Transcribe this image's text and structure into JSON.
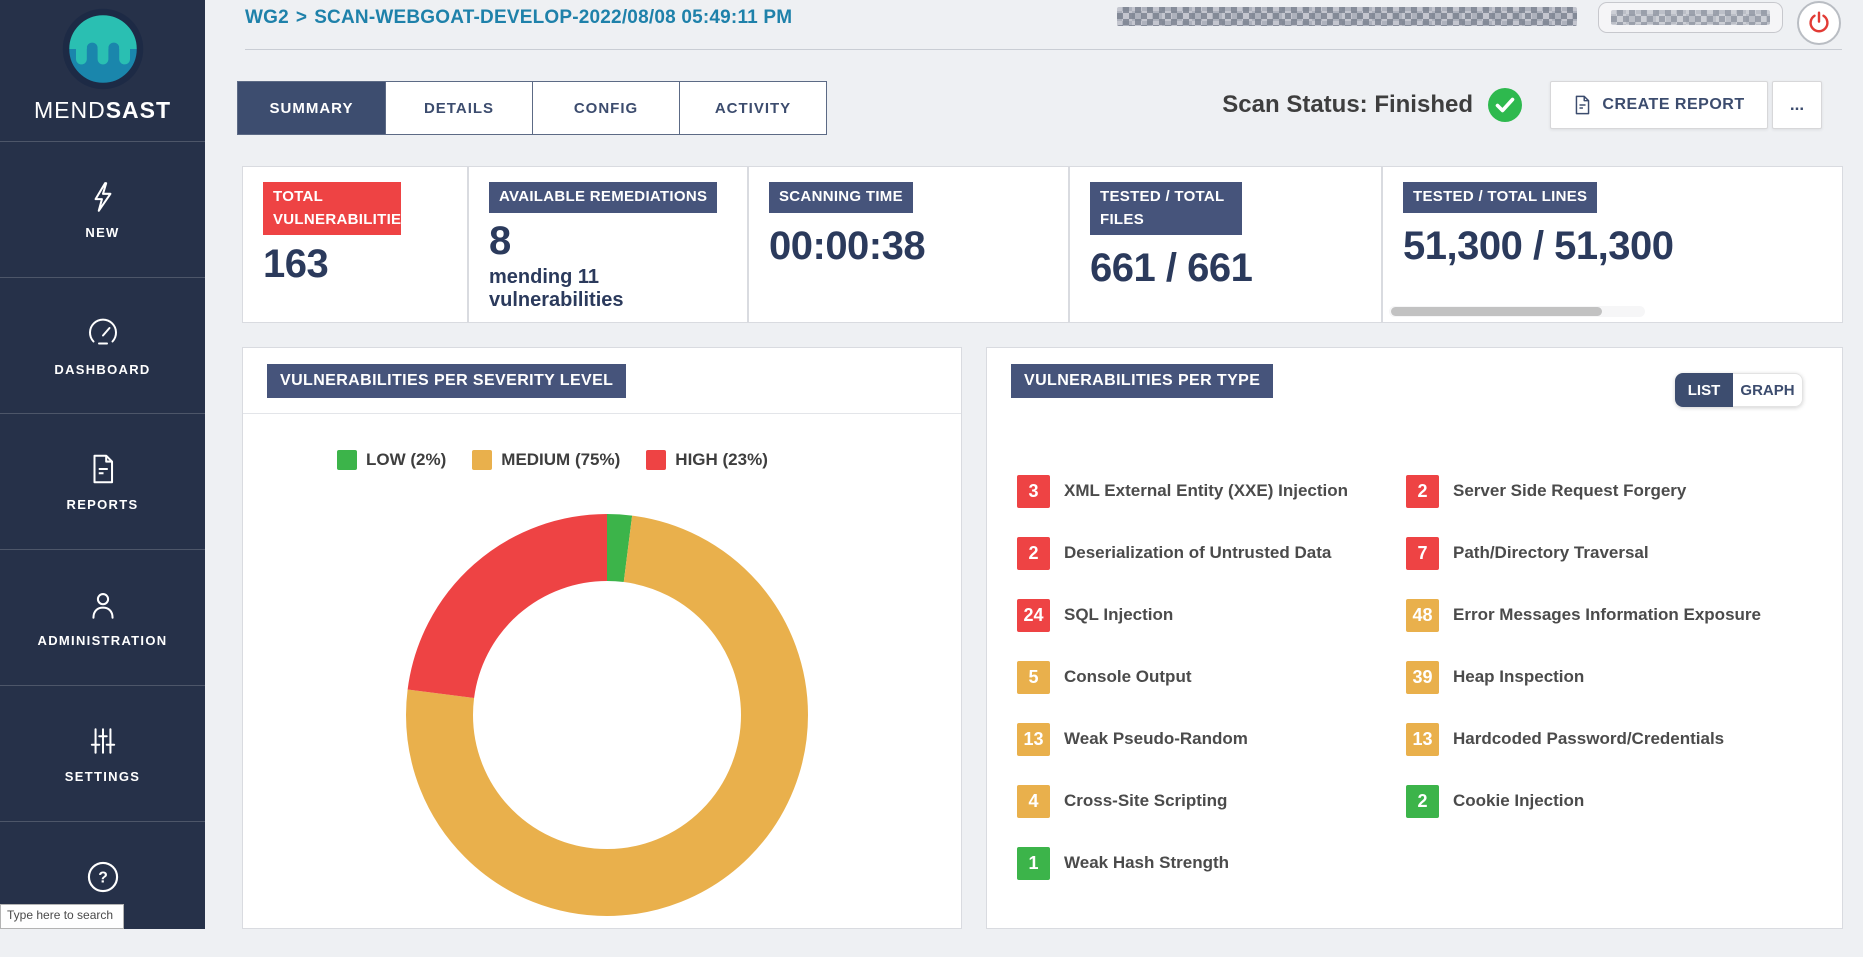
{
  "brand": {
    "light": "MEND",
    "bold": "SAST"
  },
  "sidebar": {
    "items": [
      {
        "label": "NEW",
        "icon": "lightning-icon"
      },
      {
        "label": "DASHBOARD",
        "icon": "speedometer-icon"
      },
      {
        "label": "REPORTS",
        "icon": "report-document-icon"
      },
      {
        "label": "ADMINISTRATION",
        "icon": "user-icon"
      },
      {
        "label": "SETTINGS",
        "icon": "sliders-icon"
      },
      {
        "label": "HELP",
        "icon": "question-circle-icon"
      }
    ]
  },
  "header": {
    "breadcrumb_project": "WG2",
    "breadcrumb_separator": ">",
    "breadcrumb_scan": "SCAN-WEBGOAT-DEVELOP-2022/08/08 05:49:11 PM"
  },
  "tabs": [
    {
      "label": "SUMMARY",
      "active": true
    },
    {
      "label": "DETAILS",
      "active": false
    },
    {
      "label": "CONFIG",
      "active": false
    },
    {
      "label": "ACTIVITY",
      "active": false
    }
  ],
  "status": {
    "scan_status_label": "Scan Status: Finished"
  },
  "actions": {
    "create_report": "CREATE REPORT",
    "more": "..."
  },
  "stat_cards": [
    {
      "title": "TOTAL VULNERABILITIES",
      "value": "163",
      "accent": "red"
    },
    {
      "title": "AVAILABLE REMEDIATIONS",
      "value": "8",
      "subtext": "mending 11 vulnerabilities"
    },
    {
      "title": "SCANNING TIME",
      "value": "00:00:38"
    },
    {
      "title": "TESTED / TOTAL FILES",
      "value": "661 / 661"
    },
    {
      "title": "TESTED / TOTAL LINES",
      "value": "51,300 / 51,300"
    }
  ],
  "severity_panel": {
    "title": "VULNERABILITIES PER SEVERITY LEVEL",
    "legend": [
      {
        "label": "LOW (2%)",
        "severity": "low"
      },
      {
        "label": "MEDIUM (75%)",
        "severity": "medium"
      },
      {
        "label": "HIGH (23%)",
        "severity": "high"
      }
    ]
  },
  "type_panel": {
    "title": "VULNERABILITIES PER TYPE",
    "toggle": {
      "list": "LIST",
      "graph": "GRAPH",
      "selected": "LIST"
    },
    "columns": [
      [
        {
          "count": 3,
          "label": "XML External Entity (XXE) Injection",
          "severity": "high"
        },
        {
          "count": 2,
          "label": "Deserialization of Untrusted Data",
          "severity": "high"
        },
        {
          "count": 24,
          "label": "SQL Injection",
          "severity": "high"
        },
        {
          "count": 5,
          "label": "Console Output",
          "severity": "medium"
        },
        {
          "count": 13,
          "label": "Weak Pseudo-Random",
          "severity": "medium"
        },
        {
          "count": 4,
          "label": "Cross-Site Scripting",
          "severity": "medium"
        },
        {
          "count": 1,
          "label": "Weak Hash Strength",
          "severity": "low"
        }
      ],
      [
        {
          "count": 2,
          "label": "Server Side Request Forgery",
          "severity": "high"
        },
        {
          "count": 7,
          "label": "Path/Directory Traversal",
          "severity": "high"
        },
        {
          "count": 48,
          "label": "Error Messages Information Exposure",
          "severity": "medium"
        },
        {
          "count": 39,
          "label": "Heap Inspection",
          "severity": "medium"
        },
        {
          "count": 13,
          "label": "Hardcoded Password/Credentials",
          "severity": "medium"
        },
        {
          "count": 2,
          "label": "Cookie Injection",
          "severity": "low"
        }
      ]
    ]
  },
  "chart_data": {
    "type": "pie",
    "donut": true,
    "title": "VULNERABILITIES PER SEVERITY LEVEL",
    "categories": [
      "LOW",
      "MEDIUM",
      "HIGH"
    ],
    "values": [
      2,
      75,
      23
    ],
    "unit": "percent",
    "colors": [
      "#3cb44a",
      "#e9b04c",
      "#ee4344"
    ],
    "legend_position": "top",
    "start_angle": "top",
    "direction": "clockwise"
  },
  "colors": {
    "high": "#ee4344",
    "medium": "#e9b04c",
    "low": "#3cb44a",
    "badge_navy": "#46547b",
    "sidebar_navy": "#263149",
    "active_tab_navy": "#3d4d6f",
    "breadcrumb_teal": "#1e81aa",
    "status_check_green": "#2eb94e",
    "power_red": "#e23b35"
  },
  "taskbar": {
    "tooltip": "Type here to search"
  }
}
